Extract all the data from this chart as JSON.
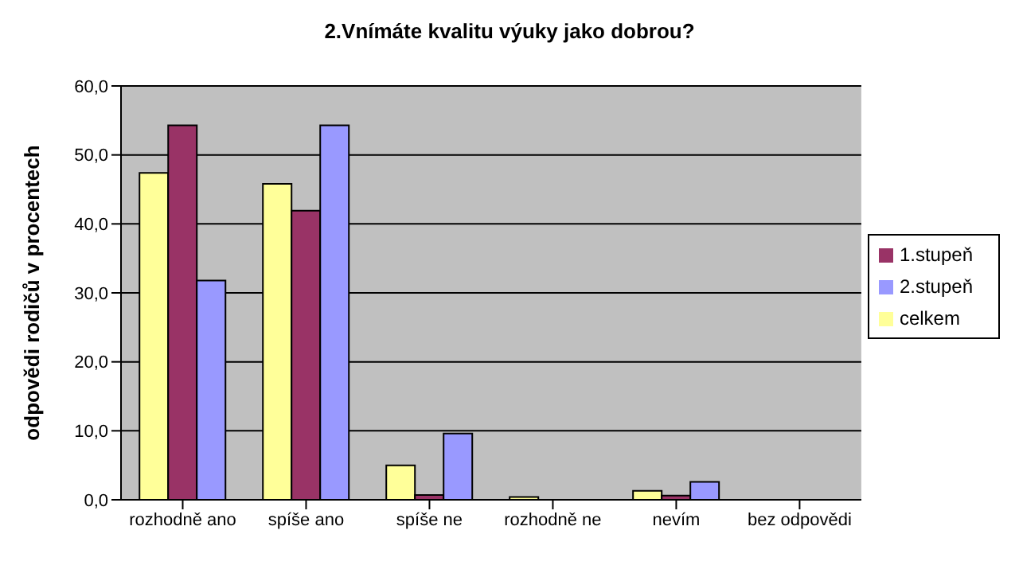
{
  "chart_data": {
    "type": "bar",
    "title": "2.Vnímáte kvalitu výuky jako dobrou?",
    "ylabel": "odpovědi rodičů v procentech",
    "categories": [
      "rozhodně ano",
      "spíše ano",
      "spíše ne",
      "rozhodně ne",
      "nevím",
      "bez odpovědi"
    ],
    "series": [
      {
        "name": "celkem",
        "color": "#ffff99",
        "values": [
          47.4,
          45.8,
          5.0,
          0.4,
          1.3,
          0
        ]
      },
      {
        "name": "1.stupeň",
        "color": "#993366",
        "values": [
          54.3,
          41.9,
          0.7,
          0,
          0.6,
          0
        ]
      },
      {
        "name": "2.stupeň",
        "color": "#9999ff",
        "values": [
          31.8,
          54.3,
          9.6,
          0,
          2.6,
          0
        ]
      }
    ],
    "ylim": [
      0,
      60
    ],
    "yticks": [
      {
        "value": 0,
        "label": "0,0"
      },
      {
        "value": 10,
        "label": "10,0"
      },
      {
        "value": 20,
        "label": "20,0"
      },
      {
        "value": 30,
        "label": "30,0"
      },
      {
        "value": 40,
        "label": "40,0"
      },
      {
        "value": 50,
        "label": "50,0"
      },
      {
        "value": 60,
        "label": "60,0"
      }
    ],
    "grid": "y",
    "legend": "right"
  }
}
